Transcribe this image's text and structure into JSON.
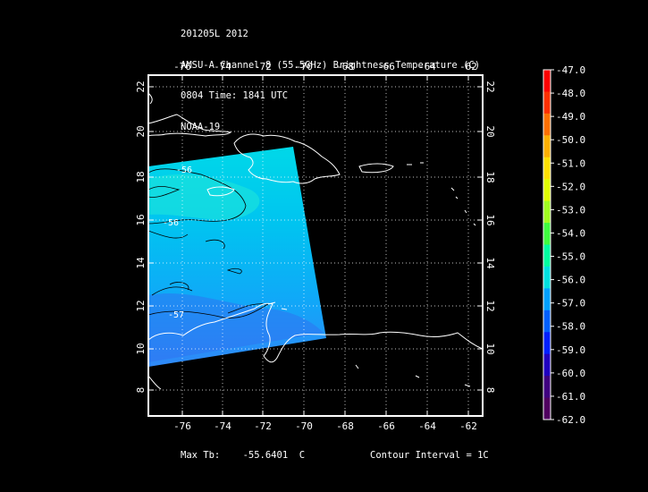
{
  "header": {
    "line1": "201205L 2012",
    "line2": "AMSU-A Channel 8 (55.5GHz) Brightness Temperature (C)",
    "line3": "0804 Time: 1841 UTC",
    "line4": "NOAA-19"
  },
  "map": {
    "lon_ticks": [
      "-76",
      "-74",
      "-72",
      "-70",
      "-68",
      "-66",
      "-64",
      "-62"
    ],
    "lat_ticks": [
      "22",
      "20",
      "18",
      "16",
      "14",
      "12",
      "10",
      "8"
    ],
    "contour_labels": [
      "-56",
      "-56",
      "-57"
    ]
  },
  "colorbar": {
    "labels": [
      "-47.0",
      "-48.0",
      "-49.0",
      "-50.0",
      "-51.0",
      "-52.0",
      "-53.0",
      "-54.0",
      "-55.0",
      "-56.0",
      "-57.0",
      "-58.0",
      "-59.0",
      "-60.0",
      "-61.0",
      "-62.0"
    ],
    "colors": [
      "#ff0000",
      "#ff3000",
      "#ff7000",
      "#ffb000",
      "#ffe000",
      "#e0ff00",
      "#a0ff20",
      "#40ff40",
      "#00ffa0",
      "#00e0e0",
      "#00a0ff",
      "#0060ff",
      "#0020ff",
      "#2000c0",
      "#400080",
      "#500060"
    ]
  },
  "footer": {
    "max_label": "Max Tb:",
    "max_value": "-55.6401",
    "max_unit": "C",
    "contour": "Contour Interval = 1C"
  }
}
